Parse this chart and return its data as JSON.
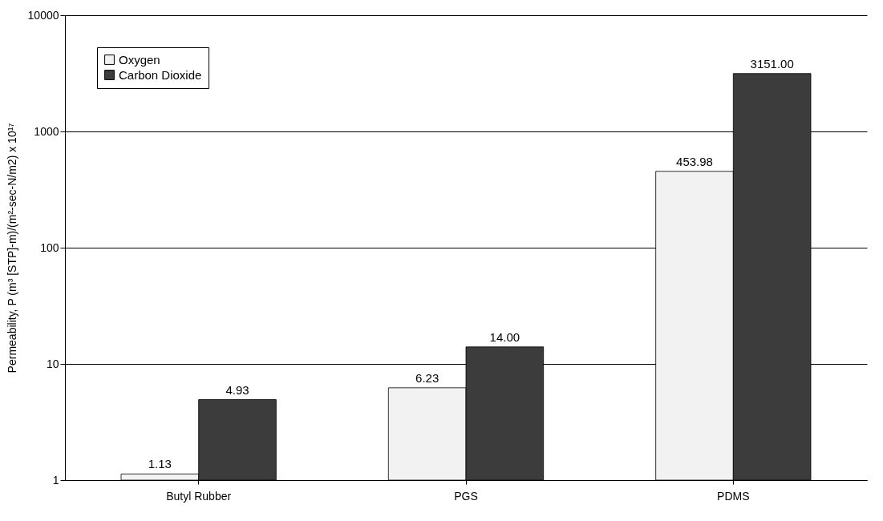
{
  "chart_data": {
    "type": "bar",
    "ylabel": "Permeability, P (m³ [STP]-m)/(m²-sec-N/m2) x 10¹⁷",
    "categories": [
      "Butyl Rubber",
      "PGS",
      "PDMS"
    ],
    "series": [
      {
        "name": "Oxygen",
        "color": "#f2f2f2",
        "values": [
          1.13,
          6.23,
          453.98
        ],
        "value_labels": [
          "1.13",
          "6.23",
          "453.98"
        ]
      },
      {
        "name": "Carbon Dioxide",
        "color": "#3c3c3c",
        "values": [
          4.93,
          14,
          3151
        ],
        "value_labels": [
          "4.93",
          "14.00",
          "3151.00"
        ]
      }
    ],
    "log": true,
    "ylim": [
      1,
      10000
    ],
    "yticks": [
      1,
      10,
      100,
      1000,
      10000
    ],
    "grid": "y",
    "legend": "top left"
  }
}
